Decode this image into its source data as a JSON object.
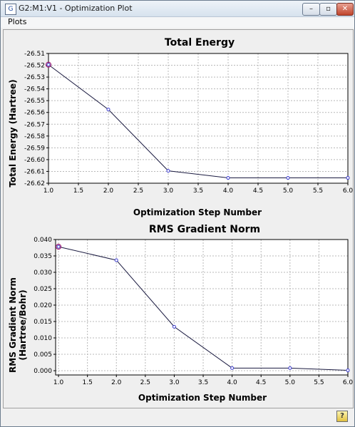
{
  "window": {
    "title": "G2:M1:V1 - Optimization Plot",
    "app_icon_glyph": "G",
    "minimize_glyph": "–",
    "maximize_glyph": "▫",
    "close_glyph": "✕"
  },
  "menu": {
    "plots_label": "Plots"
  },
  "status": {
    "help_icon_glyph": "?"
  },
  "chart_data": [
    {
      "type": "line",
      "title": "Total Energy",
      "xlabel": "Optimization Step Number",
      "ylabel": "Total Energy (Hartree)",
      "x": [
        1,
        2,
        3,
        4,
        5,
        6
      ],
      "y": [
        -26.5195,
        -26.5575,
        -26.6095,
        -26.6155,
        -26.6155,
        -26.6155
      ],
      "xlim": [
        1.0,
        6.0
      ],
      "ylim": [
        -26.62,
        -26.51
      ],
      "xticks": [
        1.0,
        1.5,
        2.0,
        2.5,
        3.0,
        3.5,
        4.0,
        4.5,
        5.0,
        5.5,
        6.0
      ],
      "xtick_labels": [
        "1.0",
        "1.5",
        "2.0",
        "2.5",
        "3.0",
        "3.5",
        "4.0",
        "4.5",
        "5.0",
        "5.5",
        "6.0"
      ],
      "yticks": [
        -26.51,
        -26.52,
        -26.53,
        -26.54,
        -26.55,
        -26.56,
        -26.57,
        -26.58,
        -26.59,
        -26.6,
        -26.61,
        -26.62
      ],
      "ytick_labels": [
        "-26.51",
        "-26.52",
        "-26.53",
        "-26.54",
        "-26.55",
        "-26.56",
        "-26.57",
        "-26.58",
        "-26.59",
        "-26.60",
        "-26.61",
        "-26.62"
      ],
      "grid": true,
      "line_color": "#1a1a40",
      "marker_color": "#3b3bd0",
      "highlight_color": "#a02070"
    },
    {
      "type": "line",
      "title": "RMS Gradient Norm",
      "xlabel": "Optimization Step Number",
      "ylabel_lines": [
        "RMS Gradient Norm",
        "(Hartree/Bohr)"
      ],
      "x": [
        1,
        2,
        3,
        4,
        5,
        6
      ],
      "y": [
        0.0378,
        0.0337,
        0.0134,
        0.0008,
        0.0008,
        0.0001
      ],
      "xlim": [
        0.95,
        6.0
      ],
      "ylim": [
        -0.0013,
        0.04
      ],
      "xticks": [
        1.0,
        1.5,
        2.0,
        2.5,
        3.0,
        3.5,
        4.0,
        4.5,
        5.0,
        5.5,
        6.0
      ],
      "xtick_labels": [
        "1.0",
        "1.5",
        "2.0",
        "2.5",
        "3.0",
        "3.5",
        "4.0",
        "4.5",
        "5.0",
        "5.5",
        "6.0"
      ],
      "yticks": [
        0.04,
        0.035,
        0.03,
        0.025,
        0.02,
        0.015,
        0.01,
        0.005,
        0.0
      ],
      "ytick_labels": [
        "0.040",
        "0.035",
        "0.030",
        "0.025",
        "0.020",
        "0.015",
        "0.010",
        "0.005",
        "0.000"
      ],
      "grid": true,
      "line_color": "#1a1a40",
      "marker_color": "#3b3bd0",
      "highlight_color": "#a02070"
    }
  ]
}
